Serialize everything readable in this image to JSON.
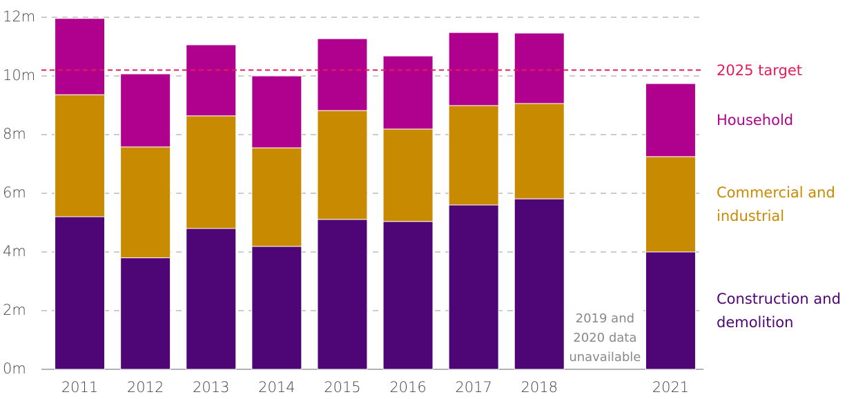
{
  "chart_data": {
    "type": "stacked_bar",
    "categories": [
      "2011",
      "2012",
      "2013",
      "2014",
      "2015",
      "2016",
      "2017",
      "2018",
      null,
      "2021"
    ],
    "series": [
      {
        "name": "Construction and demolition",
        "color": "#4e0575",
        "values": [
          5.2,
          3.8,
          4.8,
          4.19,
          5.11,
          5.04,
          5.6,
          5.81,
          null,
          4.0
        ]
      },
      {
        "name": "Commercial and industrial",
        "color": "#c88a00",
        "values": [
          4.16,
          3.78,
          3.84,
          3.36,
          3.71,
          3.15,
          3.39,
          3.25,
          null,
          3.25
        ]
      },
      {
        "name": "Household",
        "color": "#b0008e",
        "values": [
          2.6,
          2.49,
          2.42,
          2.45,
          2.45,
          2.49,
          2.49,
          2.4,
          null,
          2.49
        ]
      }
    ],
    "target": {
      "label": "2025 target",
      "value": 10.2,
      "color": "#e31c5a"
    },
    "annotation": "2019 and 2020 data unavailable",
    "ylim": [
      0,
      12
    ],
    "yticks": [
      {
        "value": 0,
        "label": "0m"
      },
      {
        "value": 2,
        "label": "2m"
      },
      {
        "value": 4,
        "label": "4m"
      },
      {
        "value": 6,
        "label": "6m"
      },
      {
        "value": 8,
        "label": "8m"
      },
      {
        "value": 10,
        "label": "10m"
      },
      {
        "value": 12,
        "label": "12m"
      }
    ],
    "grid": true
  }
}
